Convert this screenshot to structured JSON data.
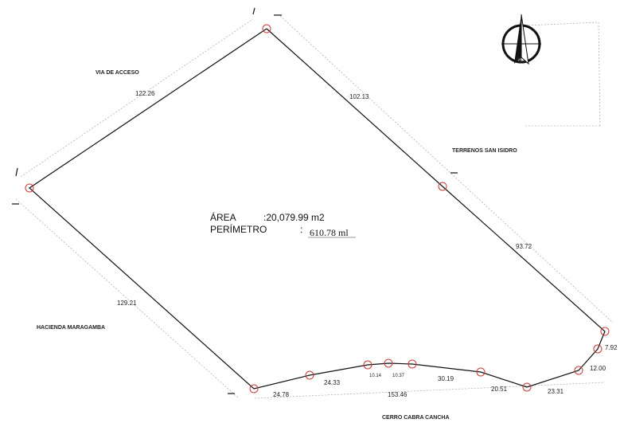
{
  "labels": {
    "via_acceso": "VIA DE ACCESO",
    "terrenos": "TERRENOS SAN ISIDRO",
    "hacienda": "HACIENDA MARAGAMBA",
    "cerro": "CERRO CABRA CANCHA"
  },
  "summary": {
    "area_label": "ÁREA",
    "area_value": ":20,079.99 m2",
    "perimeter_label": "PERÍMETRO",
    "perimeter_colon": ":",
    "perimeter_value": "610.78 ml"
  },
  "dimensions": {
    "d1": "122.26",
    "d2": "102.13",
    "d3": "93.72",
    "d4": "7.92",
    "d5": "12.00",
    "d6": "23.31",
    "d7": "20.51",
    "d8": "30.19",
    "d9": "10.37",
    "d10": "10.14",
    "d11": "24.33",
    "d12": "24.78",
    "d13": "153.46",
    "d14": "129.21"
  },
  "north_arrow": {
    "letter": "N",
    "icon": "north-arrow-icon"
  },
  "colors": {
    "boundary": "#111111",
    "vertex": "#c73a3a",
    "extension": "#999999"
  }
}
